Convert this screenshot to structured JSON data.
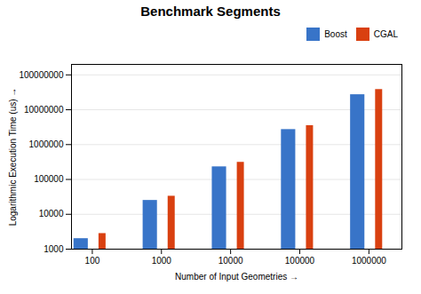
{
  "chart_data": {
    "type": "bar",
    "title": "Benchmark Segments",
    "xlabel": "Number of Input Geometries",
    "ylabel": "Logarithmic Execution Time (us)",
    "categories": [
      100,
      1000,
      10000,
      100000,
      1000000
    ],
    "series": [
      {
        "name": "Boost",
        "color": "#3874C8",
        "values": [
          2000,
          25000,
          230000,
          2700000,
          27000000
        ]
      },
      {
        "name": "CGAL",
        "color": "#D94010",
        "values": [
          2800,
          33000,
          310000,
          3500000,
          38000000
        ]
      }
    ],
    "log": true,
    "xlim": [
      50,
      3000000
    ],
    "xticks": [
      100,
      1000,
      10000,
      100000,
      1000000
    ],
    "ylim": [
      1000,
      200000000
    ],
    "yticks": [
      1000,
      10000,
      100000,
      1000000,
      10000000,
      100000000
    ],
    "grid": "y",
    "legend": "upper right"
  }
}
